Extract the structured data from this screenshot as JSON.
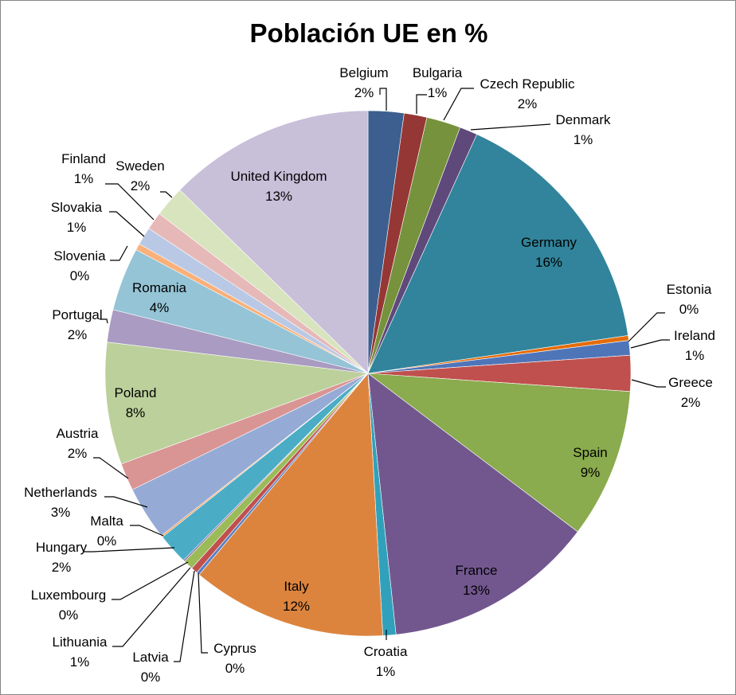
{
  "chart_data": {
    "type": "pie",
    "title": "Población UE en %",
    "start_angle_deg": 0,
    "direction": "clockwise",
    "slices": [
      {
        "label": "Belgium",
        "value": 2.2,
        "display": "2%",
        "color": "#3c5f8f"
      },
      {
        "label": "Bulgaria",
        "value": 1.4,
        "display": "1%",
        "color": "#953735"
      },
      {
        "label": "Czech Republic",
        "value": 2.1,
        "display": "2%",
        "color": "#76923c"
      },
      {
        "label": "Denmark",
        "value": 1.1,
        "display": "1%",
        "color": "#5f497a"
      },
      {
        "label": "Germany",
        "value": 15.9,
        "display": "16%",
        "color": "#31849b"
      },
      {
        "label": "Estonia",
        "value": 0.3,
        "display": "0%",
        "color": "#e46c0a"
      },
      {
        "label": "Ireland",
        "value": 0.9,
        "display": "1%",
        "color": "#4f75b9"
      },
      {
        "label": "Greece",
        "value": 2.2,
        "display": "2%",
        "color": "#c0504d"
      },
      {
        "label": "Spain",
        "value": 9.2,
        "display": "9%",
        "color": "#8aab4e"
      },
      {
        "label": "France",
        "value": 13.0,
        "display": "13%",
        "color": "#72578f"
      },
      {
        "label": "Croatia",
        "value": 0.8,
        "display": "1%",
        "color": "#31a1bb"
      },
      {
        "label": "Italy",
        "value": 12.0,
        "display": "12%",
        "color": "#dc843e"
      },
      {
        "label": "Cyprus",
        "value": 0.2,
        "display": "0%",
        "color": "#5a80c2"
      },
      {
        "label": "Latvia",
        "value": 0.4,
        "display": "0%",
        "color": "#c0504d"
      },
      {
        "label": "Lithuania",
        "value": 0.6,
        "display": "1%",
        "color": "#9bbb59"
      },
      {
        "label": "Luxembourg",
        "value": 0.1,
        "display": "0%",
        "color": "#8064a2"
      },
      {
        "label": "Hungary",
        "value": 1.9,
        "display": "2%",
        "color": "#4bacc6"
      },
      {
        "label": "Malta",
        "value": 0.1,
        "display": "0%",
        "color": "#f79646"
      },
      {
        "label": "Netherlands",
        "value": 3.3,
        "display": "3%",
        "color": "#95abd6"
      },
      {
        "label": "Austria",
        "value": 1.7,
        "display": "2%",
        "color": "#d99594"
      },
      {
        "label": "Poland",
        "value": 7.5,
        "display": "8%",
        "color": "#bcd09b"
      },
      {
        "label": "Portugal",
        "value": 2.0,
        "display": "2%",
        "color": "#a99bc1"
      },
      {
        "label": "Romania",
        "value": 3.9,
        "display": "4%",
        "color": "#94c4d6"
      },
      {
        "label": "Slovenia",
        "value": 0.4,
        "display": "0%",
        "color": "#fab07a"
      },
      {
        "label": "Slovakia",
        "value": 1.1,
        "display": "1%",
        "color": "#b9c9e5"
      },
      {
        "label": "Finland",
        "value": 1.1,
        "display": "1%",
        "color": "#e6b9b8"
      },
      {
        "label": "Sweden",
        "value": 1.9,
        "display": "2%",
        "color": "#d7e4bd"
      },
      {
        "label": "United Kingdom",
        "value": 12.7,
        "display": "13%",
        "color": "#c8bfd9"
      }
    ],
    "legend": "none"
  }
}
